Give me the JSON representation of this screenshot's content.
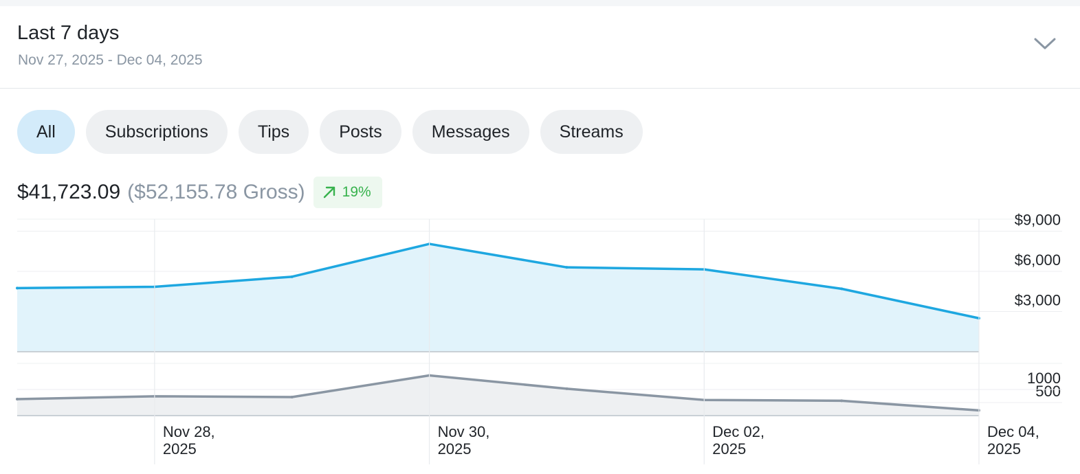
{
  "header": {
    "title": "Last 7 days",
    "date_range": "Nov 27, 2025 - Dec 04, 2025"
  },
  "filters": [
    {
      "label": "All",
      "active": true
    },
    {
      "label": "Subscriptions",
      "active": false
    },
    {
      "label": "Tips",
      "active": false
    },
    {
      "label": "Posts",
      "active": false
    },
    {
      "label": "Messages",
      "active": false
    },
    {
      "label": "Streams",
      "active": false
    }
  ],
  "summary": {
    "net": "$41,723.09",
    "gross": "($52,155.78 Gross)",
    "change": "19%",
    "change_color": "#37b24d"
  },
  "colors": {
    "earnings_line": "#1ea7e0",
    "earnings_fill": "#e1f3fb",
    "count_line": "#8a96a3",
    "count_fill": "#eef0f2"
  },
  "chart_data": [
    {
      "type": "area",
      "x": [
        "2025-11-27",
        "2025-11-28",
        "2025-11-29",
        "2025-11-30",
        "2025-12-01",
        "2025-12-02",
        "2025-12-03",
        "2025-12-04"
      ],
      "values": [
        4750,
        4850,
        5600,
        8050,
        6300,
        6150,
        4700,
        2500
      ],
      "ylim": [
        0,
        9900
      ],
      "yticks": [
        {
          "value": 3000,
          "label": "$3,000"
        },
        {
          "value": 6000,
          "label": "$6,000"
        },
        {
          "value": 9000,
          "label": "$9,000"
        }
      ],
      "grid": true
    },
    {
      "type": "area",
      "x": [
        "2025-11-27",
        "2025-11-28",
        "2025-11-29",
        "2025-11-30",
        "2025-12-01",
        "2025-12-02",
        "2025-12-03",
        "2025-12-04"
      ],
      "values": [
        630,
        740,
        710,
        1540,
        1030,
        600,
        570,
        200
      ],
      "ylim": [
        0,
        2000
      ],
      "yticks": [
        {
          "value": 500,
          "label": "500"
        },
        {
          "value": 1000,
          "label": "1000"
        }
      ],
      "xticks": [
        {
          "index": 1,
          "line1": "Nov 28,",
          "line2": "2025"
        },
        {
          "index": 3,
          "line1": "Nov 30,",
          "line2": "2025"
        },
        {
          "index": 5,
          "line1": "Dec 02,",
          "line2": "2025"
        },
        {
          "index": 7,
          "line1": "Dec 04,",
          "line2": "2025"
        }
      ],
      "grid": true
    }
  ]
}
